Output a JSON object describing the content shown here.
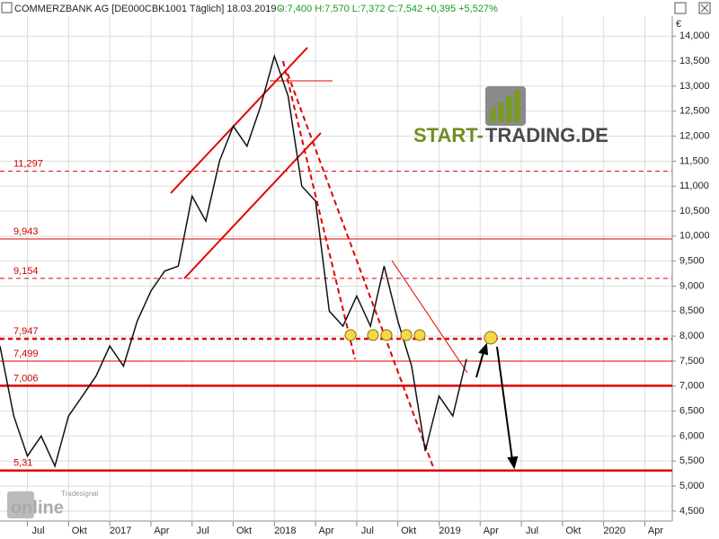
{
  "header": {
    "instrument": "COMMERZBANK AG [DE000CBK1001  Täglich] 18.03.2019 -",
    "quote": "O:7,400 H:7,570 L:7,372 C:7,542 +0,395 +5,527%"
  },
  "currency": "€",
  "logo": {
    "part1": "START-",
    "part2": "TRADING.DE"
  },
  "watermark": {
    "brand": "Tradesignal",
    "name": "online"
  },
  "chart_data": {
    "type": "line",
    "x": [
      "2016-05",
      "2016-06",
      "2016-07",
      "2016-08",
      "2016-09",
      "2016-10",
      "2016-11",
      "2016-12",
      "2017-01",
      "2017-02",
      "2017-03",
      "2017-04",
      "2017-05",
      "2017-06",
      "2017-07",
      "2017-08",
      "2017-09",
      "2017-10",
      "2017-11",
      "2017-12",
      "2018-01",
      "2018-02",
      "2018-03",
      "2018-04",
      "2018-05",
      "2018-06",
      "2018-07",
      "2018-08",
      "2018-09",
      "2018-10",
      "2018-11",
      "2018-12",
      "2019-01",
      "2019-02",
      "2019-03"
    ],
    "series": [
      {
        "name": "COMMERZBANK AG",
        "color": "#111111",
        "values": [
          7.8,
          6.4,
          5.6,
          6.0,
          5.4,
          6.4,
          6.8,
          7.2,
          7.8,
          7.4,
          8.3,
          8.9,
          9.3,
          9.4,
          10.8,
          10.3,
          11.5,
          12.2,
          11.8,
          12.6,
          13.6,
          12.8,
          11.0,
          10.7,
          8.5,
          8.2,
          8.8,
          8.2,
          9.4,
          8.3,
          7.4,
          5.7,
          6.8,
          6.4,
          7.54
        ]
      }
    ],
    "xlim": [
      "2016-05",
      "2020-06"
    ],
    "xticks": [
      {
        "value": "2016-07",
        "label": "Jul"
      },
      {
        "value": "2016-10",
        "label": "Okt"
      },
      {
        "value": "2017-01",
        "label": "2017"
      },
      {
        "value": "2017-04",
        "label": "Apr"
      },
      {
        "value": "2017-07",
        "label": "Jul"
      },
      {
        "value": "2017-10",
        "label": "Okt"
      },
      {
        "value": "2018-01",
        "label": "2018"
      },
      {
        "value": "2018-04",
        "label": "Apr"
      },
      {
        "value": "2018-07",
        "label": "Jul"
      },
      {
        "value": "2018-10",
        "label": "Okt"
      },
      {
        "value": "2019-01",
        "label": "2019"
      },
      {
        "value": "2019-04",
        "label": "Apr"
      },
      {
        "value": "2019-07",
        "label": "Jul"
      },
      {
        "value": "2019-10",
        "label": "Okt"
      },
      {
        "value": "2020-01",
        "label": "2020"
      },
      {
        "value": "2020-04",
        "label": "Apr"
      }
    ],
    "ylim": [
      4.3,
      14.4
    ],
    "yticks": [
      {
        "value": 4.5,
        "label": "4,500"
      },
      {
        "value": 5,
        "label": "5,000"
      },
      {
        "value": 5.5,
        "label": "5,500"
      },
      {
        "value": 6,
        "label": "6,000"
      },
      {
        "value": 6.5,
        "label": "6,500"
      },
      {
        "value": 7,
        "label": "7,000"
      },
      {
        "value": 7.5,
        "label": "7,500"
      },
      {
        "value": 8,
        "label": "8,000"
      },
      {
        "value": 8.5,
        "label": "8,500"
      },
      {
        "value": 9,
        "label": "9,000"
      },
      {
        "value": 9.5,
        "label": "9,500"
      },
      {
        "value": 10,
        "label": "10,000"
      },
      {
        "value": 10.5,
        "label": "10,500"
      },
      {
        "value": 11,
        "label": "11,000"
      },
      {
        "value": 11.5,
        "label": "11,500"
      },
      {
        "value": 12,
        "label": "12,000"
      },
      {
        "value": 12.5,
        "label": "12,500"
      },
      {
        "value": 13,
        "label": "13,000"
      },
      {
        "value": 13.5,
        "label": "13,500"
      },
      {
        "value": 14,
        "label": "14,000"
      }
    ],
    "grid": true,
    "levels": [
      {
        "value": 11.297,
        "label": "11,297",
        "style": "dashed",
        "weight": "thin"
      },
      {
        "value": 9.943,
        "label": "9,943",
        "style": "solid",
        "weight": "thin"
      },
      {
        "value": 9.154,
        "label": "9,154",
        "style": "dashed",
        "weight": "thin"
      },
      {
        "value": 7.947,
        "label": "7,947",
        "style": "dashed",
        "weight": "thick"
      },
      {
        "value": 7.499,
        "label": "7,499",
        "style": "solid",
        "weight": "thin"
      },
      {
        "value": 7.006,
        "label": "7,006",
        "style": "solid",
        "weight": "thick"
      },
      {
        "value": 5.31,
        "label": "5,31",
        "style": "solid",
        "weight": "thick"
      }
    ],
    "level_color": "#e00000"
  }
}
